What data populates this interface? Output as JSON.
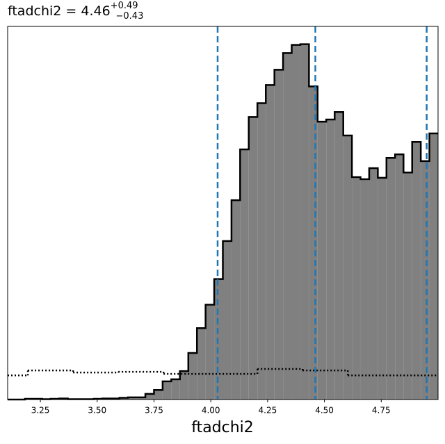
{
  "chart_data": {
    "type": "histogram",
    "title": {
      "text": "ftadchi2 = 4.46",
      "upper": "+0.49",
      "lower": "−0.43"
    },
    "x_label": "ftadchi2",
    "xlim": [
      3.106,
      5.0
    ],
    "ylim": [
      0,
      1.05
    ],
    "xticks": [
      {
        "value": 3.25,
        "label": "3.25"
      },
      {
        "value": 3.5,
        "label": "3.50"
      },
      {
        "value": 3.75,
        "label": "3.75"
      },
      {
        "value": 4.0,
        "label": "4.00"
      },
      {
        "value": 4.25,
        "label": "4.25"
      },
      {
        "value": 4.5,
        "label": "4.50"
      },
      {
        "value": 4.75,
        "label": "4.75"
      }
    ],
    "bins": [
      3.106,
      3.144,
      3.182,
      3.22,
      3.258,
      3.295,
      3.333,
      3.371,
      3.409,
      3.447,
      3.485,
      3.523,
      3.561,
      3.598,
      3.636,
      3.674,
      3.712,
      3.75,
      3.788,
      3.826,
      3.864,
      3.901,
      3.939,
      3.977,
      4.015,
      4.053,
      4.091,
      4.129,
      4.167,
      4.205,
      4.242,
      4.28,
      4.318,
      4.356,
      4.394,
      4.432,
      4.47,
      4.508,
      4.545,
      4.583,
      4.621,
      4.659,
      4.697,
      4.735,
      4.773,
      4.811,
      4.848,
      4.886,
      4.924,
      4.962,
      5.0
    ],
    "values": [
      0,
      0,
      0.002,
      0.002,
      0.001,
      0.002,
      0.003,
      0.001,
      0.001,
      0.001,
      0.002,
      0.003,
      0.003,
      0.005,
      0.006,
      0.006,
      0.016,
      0.027,
      0.051,
      0.057,
      0.08,
      0.131,
      0.201,
      0.267,
      0.339,
      0.446,
      0.561,
      0.704,
      0.795,
      0.834,
      0.885,
      0.928,
      0.975,
      0.998,
      1.0,
      0.881,
      0.782,
      0.788,
      0.809,
      0.743,
      0.626,
      0.62,
      0.651,
      0.624,
      0.68,
      0.69,
      0.639,
      0.725,
      0.671,
      0.749
    ],
    "color": "#808080",
    "edge_color": "#000000",
    "prior": {
      "bins": [
        3.106,
        3.195,
        3.394,
        3.593,
        3.792,
        4.205,
        4.404,
        4.603,
        5.0
      ],
      "values": [
        0.068,
        0.082,
        0.076,
        0.078,
        0.072,
        0.086,
        0.082,
        0.068
      ],
      "color": "#000000"
    },
    "vlines": [
      4.03,
      4.46,
      4.95
    ],
    "vline_color": "#1f77b4"
  }
}
